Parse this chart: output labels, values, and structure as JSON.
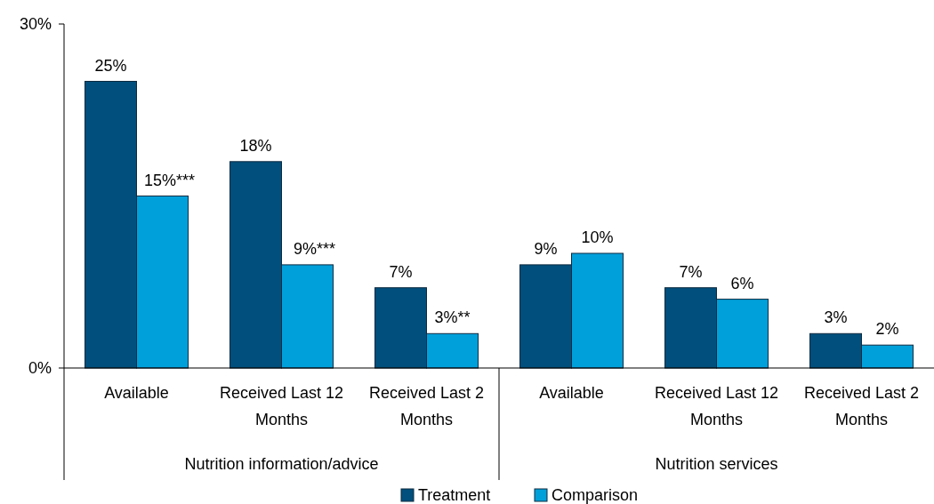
{
  "chart_data": {
    "type": "bar",
    "categories": [
      "Available",
      "Received Last 12 Months",
      "Received Last 2 Months",
      "Available",
      "Received Last 12 Months",
      "Received Last 2 Months"
    ],
    "series": [
      {
        "name": "Treatment",
        "color": "#004f7c",
        "values": [
          25,
          18,
          7,
          9,
          7,
          3
        ],
        "value_labels": [
          "25%",
          "18%",
          "7%",
          "9%",
          "7%",
          "3%"
        ]
      },
      {
        "name": "Comparison",
        "color": "#00a0da",
        "values": [
          15,
          9,
          3,
          10,
          6,
          2
        ],
        "value_labels": [
          "15%***",
          "9%***",
          "3%**",
          "10%",
          "6%",
          "2%"
        ]
      }
    ],
    "ylim": [
      0,
      30
    ],
    "yticks": [
      {
        "value": 0,
        "label": "0%"
      },
      {
        "value": 30,
        "label": "30%"
      }
    ],
    "annotations": [
      "Nutrition information/advice",
      "Nutrition services"
    ],
    "legend": "bottom",
    "grid": false
  }
}
